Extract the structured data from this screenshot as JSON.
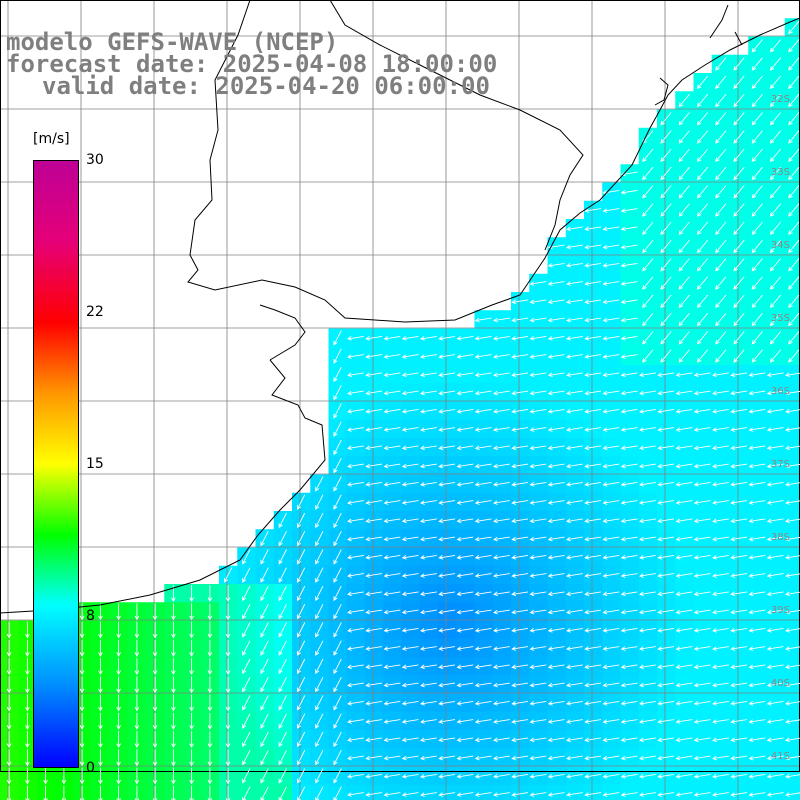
{
  "header": {
    "line1": "modelo GEFS-WAVE (NCEP)",
    "line2": "forecast date: 2025-04-08 18:00:00",
    "line3": "valid date: 2025-04-20 06:00:00"
  },
  "colorbar": {
    "unit": "[m/s]",
    "min": 0,
    "max": 30,
    "tick_labels": [
      "30",
      "22",
      "15",
      "8",
      "0"
    ],
    "tick_values": [
      30,
      22,
      15,
      8,
      0
    ]
  },
  "latitude_labels": [
    "32S",
    "33S",
    "34S",
    "35S",
    "36S",
    "37S",
    "38S",
    "39S",
    "40S",
    "41S"
  ],
  "colors": {
    "land": "#ffffff",
    "grid": "#808080",
    "coast": "#000000",
    "arrows": "#ffffff",
    "title": "#7f7f7f"
  }
}
